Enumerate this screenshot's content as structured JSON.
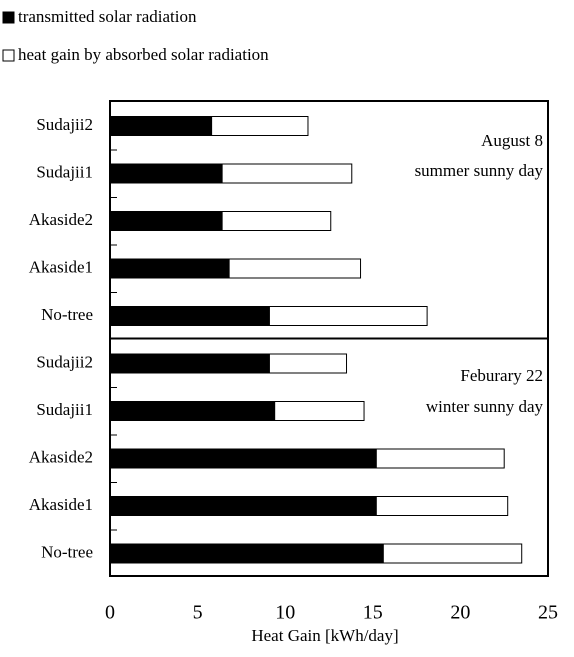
{
  "chart_data": {
    "type": "bar",
    "orientation": "horizontal",
    "stacked": true,
    "categories": [
      "Sudajii2",
      "Sudajii1",
      "Akaside2",
      "Akaside1",
      "No-tree",
      "Sudajii2",
      "Sudajii1",
      "Akaside2",
      "Akaside1",
      "No-tree"
    ],
    "series": [
      {
        "name": "transmitted solar radiation",
        "color": "#000000",
        "values": [
          5.8,
          6.4,
          6.4,
          6.8,
          9.1,
          9.1,
          9.4,
          15.2,
          15.2,
          15.6
        ]
      },
      {
        "name": "heat gain by absorbed solar radiation",
        "color": "#ffffff",
        "values": [
          5.5,
          7.4,
          6.2,
          7.5,
          9.0,
          4.4,
          5.1,
          7.3,
          7.5,
          7.9
        ]
      }
    ],
    "annotations": [
      "August 8",
      "summer sunny day",
      "Feburary 22",
      "winter sunny day"
    ],
    "xlabel": "Heat Gain [kWh/day]",
    "xlim": [
      0,
      25
    ],
    "xticks": [
      0,
      5,
      10,
      15,
      20,
      25
    ],
    "grid": false
  }
}
